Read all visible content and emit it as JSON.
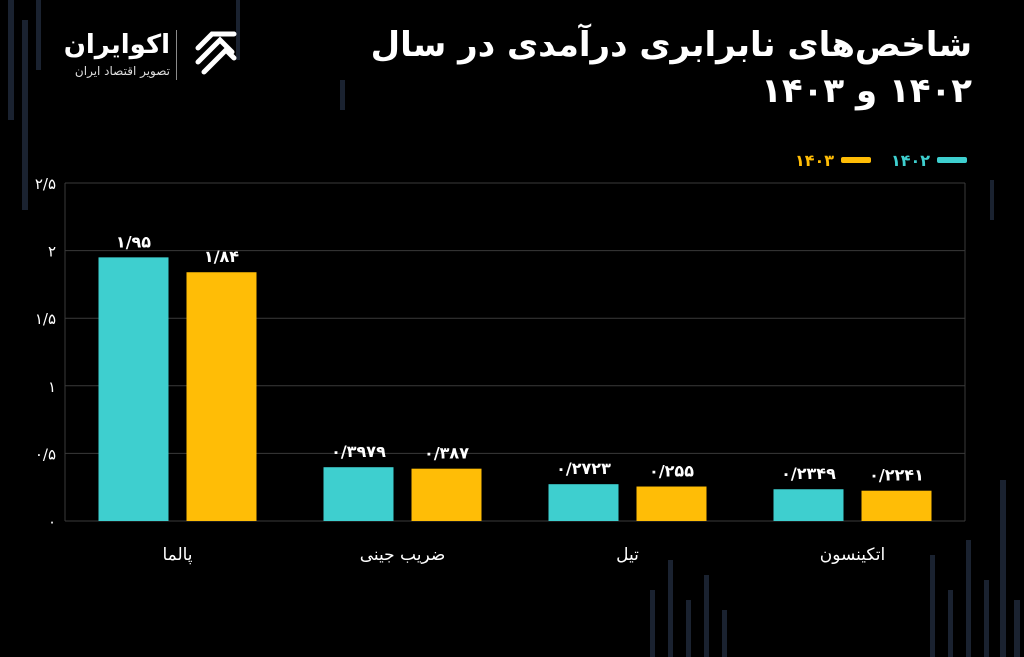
{
  "title": "شاخص‌های نابرابری درآمدی در سال ۱۴۰۲ و ۱۴۰۳",
  "logo": {
    "name": "اکوایران",
    "subtitle": "تصویر اقتصاد ایران"
  },
  "colors": {
    "series_1402": "#3ecfcf",
    "series_1403": "#ffbd06",
    "grid": "#3a3a3a",
    "text": "#ffffff"
  },
  "chart_data": {
    "type": "bar",
    "categories": [
      "پالما",
      "ضریب جینی",
      "تیل",
      "اتکینسون"
    ],
    "series": [
      {
        "name": "۱۴۰۲",
        "values": [
          1.95,
          0.3979,
          0.2723,
          0.2349
        ],
        "labels": [
          "۱/۹۵",
          "۰/۳۹۷۹",
          "۰/۲۷۲۳",
          "۰/۲۳۴۹"
        ]
      },
      {
        "name": "۱۴۰۳",
        "values": [
          1.84,
          0.387,
          0.255,
          0.2241
        ],
        "labels": [
          "۱/۸۴",
          "۰/۳۸۷",
          "۰/۲۵۵",
          "۰/۲۲۴۱"
        ]
      }
    ],
    "ylim": [
      0,
      2.5
    ],
    "yticks": [
      0,
      0.5,
      1,
      1.5,
      2,
      2.5
    ],
    "ytick_labels": [
      "۰",
      "۰/۵",
      "۱",
      "۱/۵",
      "۲",
      "۲/۵"
    ],
    "grid": true,
    "legend_position": "top-right"
  }
}
